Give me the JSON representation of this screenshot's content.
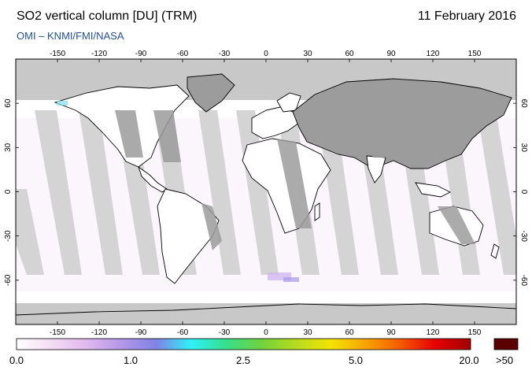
{
  "header": {
    "title": "SO2 vertical column [DU] (TRM)",
    "date": "11 February 2016",
    "source": "OMI  –  KNMI/FMI/NASA"
  },
  "map": {
    "lon_ticks": [
      "-150",
      "-120",
      "-90",
      "-60",
      "-30",
      "0",
      "30",
      "60",
      "90",
      "120",
      "150"
    ],
    "lat_ticks": [
      "60",
      "30",
      "0",
      "-30",
      "-60"
    ],
    "colors": {
      "no_data": "#c8c8c8",
      "land_night": "#9c9c9c",
      "swath_gap": "#d4d4d4",
      "background": "#ffffff",
      "coast": "#000000"
    }
  },
  "colorbar": {
    "labels": [
      "0.0",
      "1.0",
      "2.5",
      "5.0",
      "20.0"
    ],
    "over_label": ">50",
    "over_color": "#5a0000",
    "gradient_colors": [
      "#ffffff",
      "#f3dcf3",
      "#e0b8ee",
      "#b497e8",
      "#7f83e6",
      "#2ff0f6",
      "#34e08a",
      "#6fd33b",
      "#b6dc1f",
      "#f2e400",
      "#f7a400",
      "#f45a00",
      "#e40000",
      "#a00000"
    ]
  }
}
